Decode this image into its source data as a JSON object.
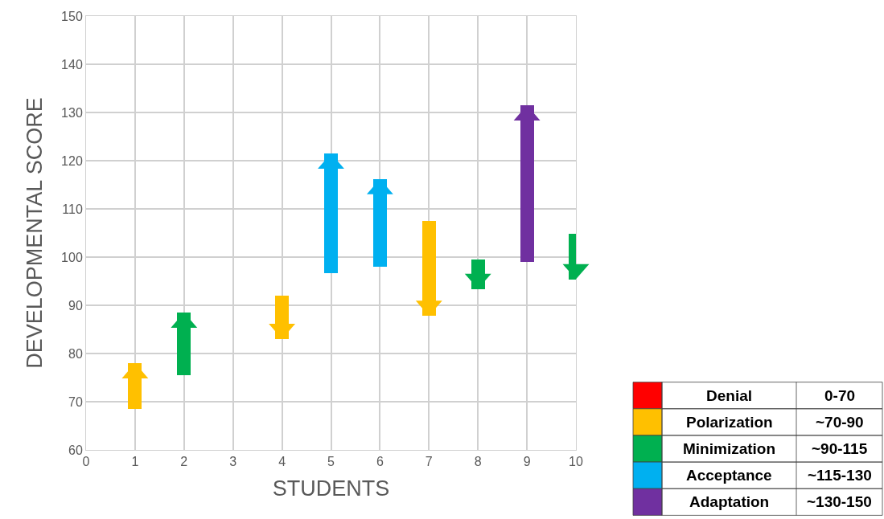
{
  "chart_data": {
    "type": "bar",
    "xlabel": "STUDENTS",
    "ylabel": "DEVELOPMENTAL SCORE",
    "x": [
      1,
      2,
      4,
      5,
      6,
      7,
      8,
      9,
      10
    ],
    "base": [
      68.5,
      75.5,
      92,
      96.7,
      98,
      107.5,
      99.5,
      99,
      104.8
    ],
    "values": [
      9.5,
      13,
      -9,
      24.8,
      18.2,
      -19.7,
      -6.1,
      32.5,
      -9.4
    ],
    "colors": [
      "#ffc000",
      "#00b050",
      "#ffc000",
      "#00b0f0",
      "#00b0f0",
      "#ffc000",
      "#00b050",
      "#7030a0",
      "#00b050"
    ],
    "xlim": [
      0,
      10
    ],
    "xticks": [
      0,
      1,
      2,
      3,
      4,
      5,
      6,
      7,
      8,
      9,
      10
    ],
    "ylim": [
      60,
      150
    ],
    "yticks": [
      60,
      70,
      80,
      90,
      100,
      110,
      120,
      130,
      140,
      150
    ],
    "grid": true,
    "annotations": [
      "Denial",
      "0-70",
      "Polarization",
      "~70-90",
      "Minimization",
      "~90-115",
      "Acceptance",
      "~115-130",
      "Adaptation",
      "~130-150"
    ]
  }
}
